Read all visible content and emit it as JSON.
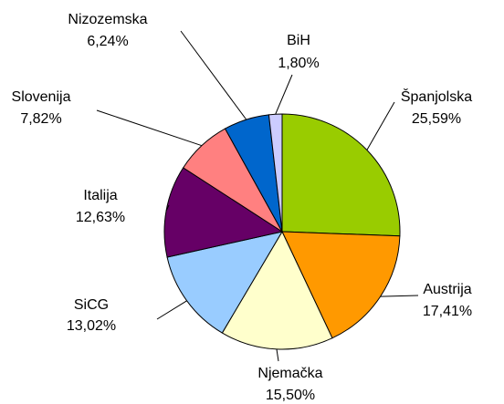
{
  "chart_data": {
    "type": "pie",
    "categories": [
      "Španjolska",
      "Austrija",
      "Njemačka",
      "SiCG",
      "Italija",
      "Slovenija",
      "Nizozemska",
      "BiH"
    ],
    "values": [
      25.59,
      17.41,
      15.5,
      13.02,
      12.63,
      7.82,
      6.24,
      1.8
    ],
    "value_labels": [
      "25,59%",
      "17,41%",
      "15,50%",
      "13,02%",
      "12,63%",
      "7,82%",
      "6,24%",
      "1,80%"
    ],
    "colors": [
      "#99cc00",
      "#ff9900",
      "#ffffcc",
      "#99ccff",
      "#660066",
      "#ff8080",
      "#0066cc",
      "#ccccff"
    ]
  }
}
